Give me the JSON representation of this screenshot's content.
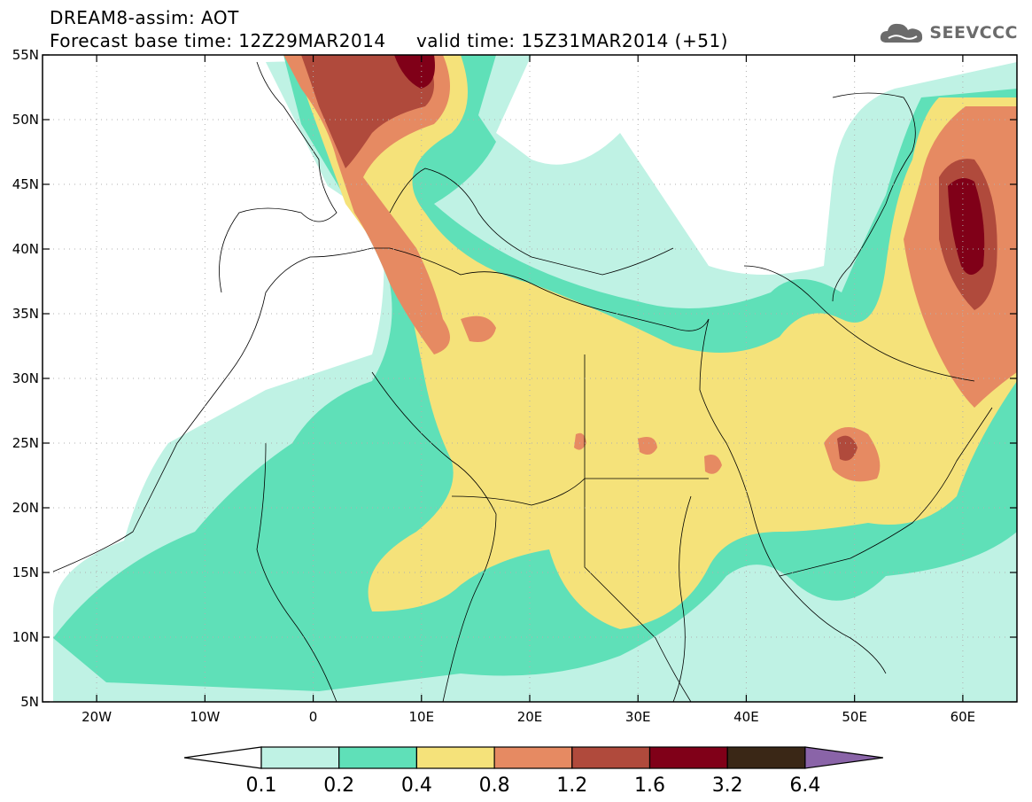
{
  "title": {
    "line1": "DREAM8-assim: AOT",
    "base_label": "Forecast base time: 12Z29MAR2014",
    "valid_label": "valid time: 15Z31MAR2014 (+51)"
  },
  "logo": {
    "text": "SEEVCCC",
    "icon": "cloud-icon"
  },
  "map": {
    "lon_range": [
      -25,
      65
    ],
    "lat_range": [
      5,
      55
    ],
    "lon_ticks": [
      {
        "value": -20,
        "label": "20W"
      },
      {
        "value": -10,
        "label": "10W"
      },
      {
        "value": 0,
        "label": "0"
      },
      {
        "value": 10,
        "label": "10E"
      },
      {
        "value": 20,
        "label": "20E"
      },
      {
        "value": 30,
        "label": "30E"
      },
      {
        "value": 40,
        "label": "40E"
      },
      {
        "value": 50,
        "label": "50E"
      },
      {
        "value": 60,
        "label": "60E"
      }
    ],
    "lat_ticks": [
      {
        "value": 55,
        "label": "55N"
      },
      {
        "value": 50,
        "label": "50N"
      },
      {
        "value": 45,
        "label": "45N"
      },
      {
        "value": 40,
        "label": "40N"
      },
      {
        "value": 35,
        "label": "35N"
      },
      {
        "value": 30,
        "label": "30N"
      },
      {
        "value": 25,
        "label": "25N"
      },
      {
        "value": 20,
        "label": "20N"
      },
      {
        "value": 15,
        "label": "15N"
      },
      {
        "value": 10,
        "label": "10N"
      },
      {
        "value": 5,
        "label": "5N"
      }
    ],
    "levels": [
      0.1,
      0.2,
      0.4,
      0.8,
      1.2,
      1.6,
      3.2,
      6.4
    ],
    "level_labels": [
      "0.1",
      "0.2",
      "0.4",
      "0.8",
      "1.2",
      "1.6",
      "3.2",
      "6.4"
    ],
    "colors": [
      "#ffffff",
      "#bff2e4",
      "#5fe0b8",
      "#f5e27a",
      "#e68a62",
      "#b04a3c",
      "#800018",
      "#3a2716",
      "#8a64a8"
    ]
  }
}
